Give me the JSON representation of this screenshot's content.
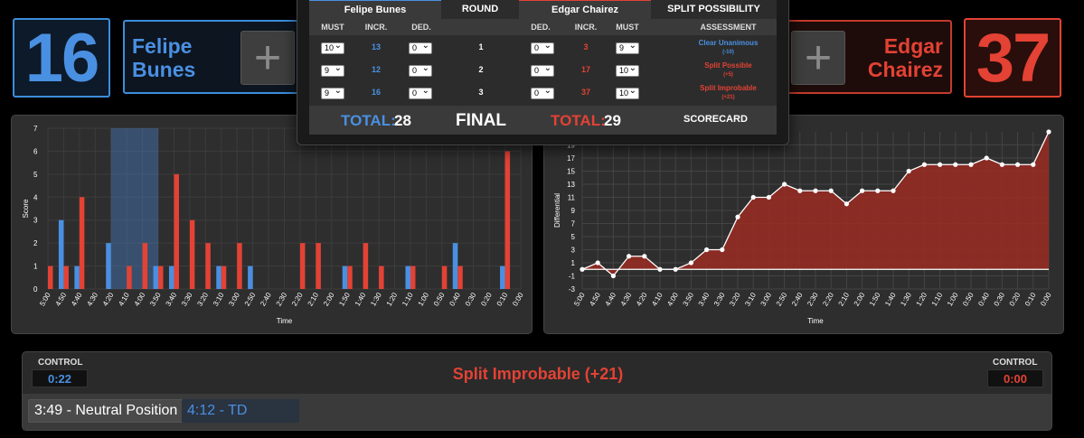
{
  "fighter_left": {
    "score": "16",
    "first_name": "Felipe",
    "last_name": "Bunes",
    "plus": "+"
  },
  "fighter_right": {
    "score": "37",
    "first_name": "Edgar",
    "last_name": "Chairez",
    "plus": "+"
  },
  "colors": {
    "blue": "#4a90e2",
    "red": "#e34234"
  },
  "scorecard": {
    "headers": {
      "left_name": "Felipe Bunes",
      "round": "ROUND",
      "right_name": "Edgar Chairez",
      "split": "SPLIT POSSIBILITY"
    },
    "subheaders": {
      "must": "MUST",
      "incr": "INCR.",
      "ded": "DED.",
      "assessment": "ASSESSMENT"
    },
    "rounds": [
      {
        "round": "1",
        "left_must": "10",
        "left_incr": "13",
        "left_ded": "0",
        "right_ded": "0",
        "right_incr": "3",
        "right_must": "9",
        "assessment": "Clear Unanimous",
        "assessment_note": "(-10)",
        "assessment_color": "blue"
      },
      {
        "round": "2",
        "left_must": "9",
        "left_incr": "12",
        "left_ded": "0",
        "right_ded": "0",
        "right_incr": "17",
        "right_must": "10",
        "assessment": "Split Possible",
        "assessment_note": "(+5)",
        "assessment_color": "red"
      },
      {
        "round": "3",
        "left_must": "9",
        "left_incr": "16",
        "left_ded": "0",
        "right_ded": "0",
        "right_incr": "37",
        "right_must": "10",
        "assessment": "Split Improbable",
        "assessment_note": "(+21)",
        "assessment_color": "red"
      }
    ],
    "total_label": "TOTAL:",
    "left_total": "28",
    "final_label": "FINAL",
    "right_total": "29",
    "scorecard_label": "SCORECARD"
  },
  "chart_data": [
    {
      "type": "bar",
      "title": "",
      "xlabel": "Time",
      "ylabel": "Score",
      "ylim": [
        0,
        7
      ],
      "yticks": [
        "0",
        "1",
        "2",
        "3",
        "4",
        "5",
        "6",
        "7"
      ],
      "categories": [
        "5:00",
        "4:50",
        "4:40",
        "4:30",
        "4:20",
        "4:10",
        "4:00",
        "3:50",
        "3:40",
        "3:30",
        "3:20",
        "3:10",
        "3:00",
        "2:50",
        "2:40",
        "2:30",
        "2:20",
        "2:10",
        "2:00",
        "1:50",
        "1:40",
        "1:30",
        "1:20",
        "1:10",
        "1:00",
        "0:50",
        "0:40",
        "0:30",
        "0:20",
        "0:10",
        "0:00"
      ],
      "series": [
        {
          "color": "blue",
          "values": [
            0,
            3,
            1,
            0,
            2,
            0,
            0,
            1,
            1,
            0,
            0,
            1,
            0,
            1,
            0,
            0,
            0,
            0,
            0,
            1,
            0,
            0,
            0,
            1,
            0,
            0,
            2,
            0,
            0,
            1,
            0
          ]
        },
        {
          "color": "red",
          "values": [
            1,
            1,
            4,
            0,
            0,
            1,
            2,
            1,
            5,
            3,
            2,
            1,
            2,
            0,
            0,
            0,
            2,
            2,
            0,
            1,
            2,
            1,
            0,
            1,
            0,
            1,
            1,
            0,
            0,
            6,
            0
          ]
        }
      ],
      "highlight_range": [
        "4:20",
        "3:50"
      ],
      "grid": true
    },
    {
      "type": "area",
      "title": "",
      "xlabel": "Time",
      "ylabel": "Differential",
      "ylim": [
        -3,
        21
      ],
      "yticks": [
        "-3",
        "-1",
        "1",
        "3",
        "5",
        "7",
        "9",
        "11",
        "13",
        "15",
        "17",
        "19"
      ],
      "x": [
        "5:00",
        "4:50",
        "4:40",
        "4:30",
        "4:20",
        "4:10",
        "4:00",
        "3:50",
        "3:40",
        "3:30",
        "3:20",
        "3:10",
        "3:00",
        "2:50",
        "2:40",
        "2:30",
        "2:20",
        "2:10",
        "2:00",
        "1:50",
        "1:40",
        "1:30",
        "1:20",
        "1:10",
        "1:00",
        "0:50",
        "0:40",
        "0:30",
        "0:20",
        "0:10",
        "0:00"
      ],
      "values": [
        0,
        1,
        -1,
        2,
        2,
        0,
        0,
        1,
        3,
        3,
        8,
        11,
        11,
        13,
        12,
        12,
        12,
        10,
        12,
        12,
        12,
        15,
        16,
        16,
        16,
        16,
        17,
        16,
        16,
        16,
        21
      ],
      "grid": true
    }
  ],
  "control": {
    "label": "CONTROL",
    "left_time": "0:22",
    "right_time": "0:00",
    "status": "Split Improbable (+21)"
  },
  "events": [
    {
      "text": "3:49 - Neutral Position",
      "style": "neutral"
    },
    {
      "text": "4:12 - TD",
      "style": "blue"
    }
  ]
}
